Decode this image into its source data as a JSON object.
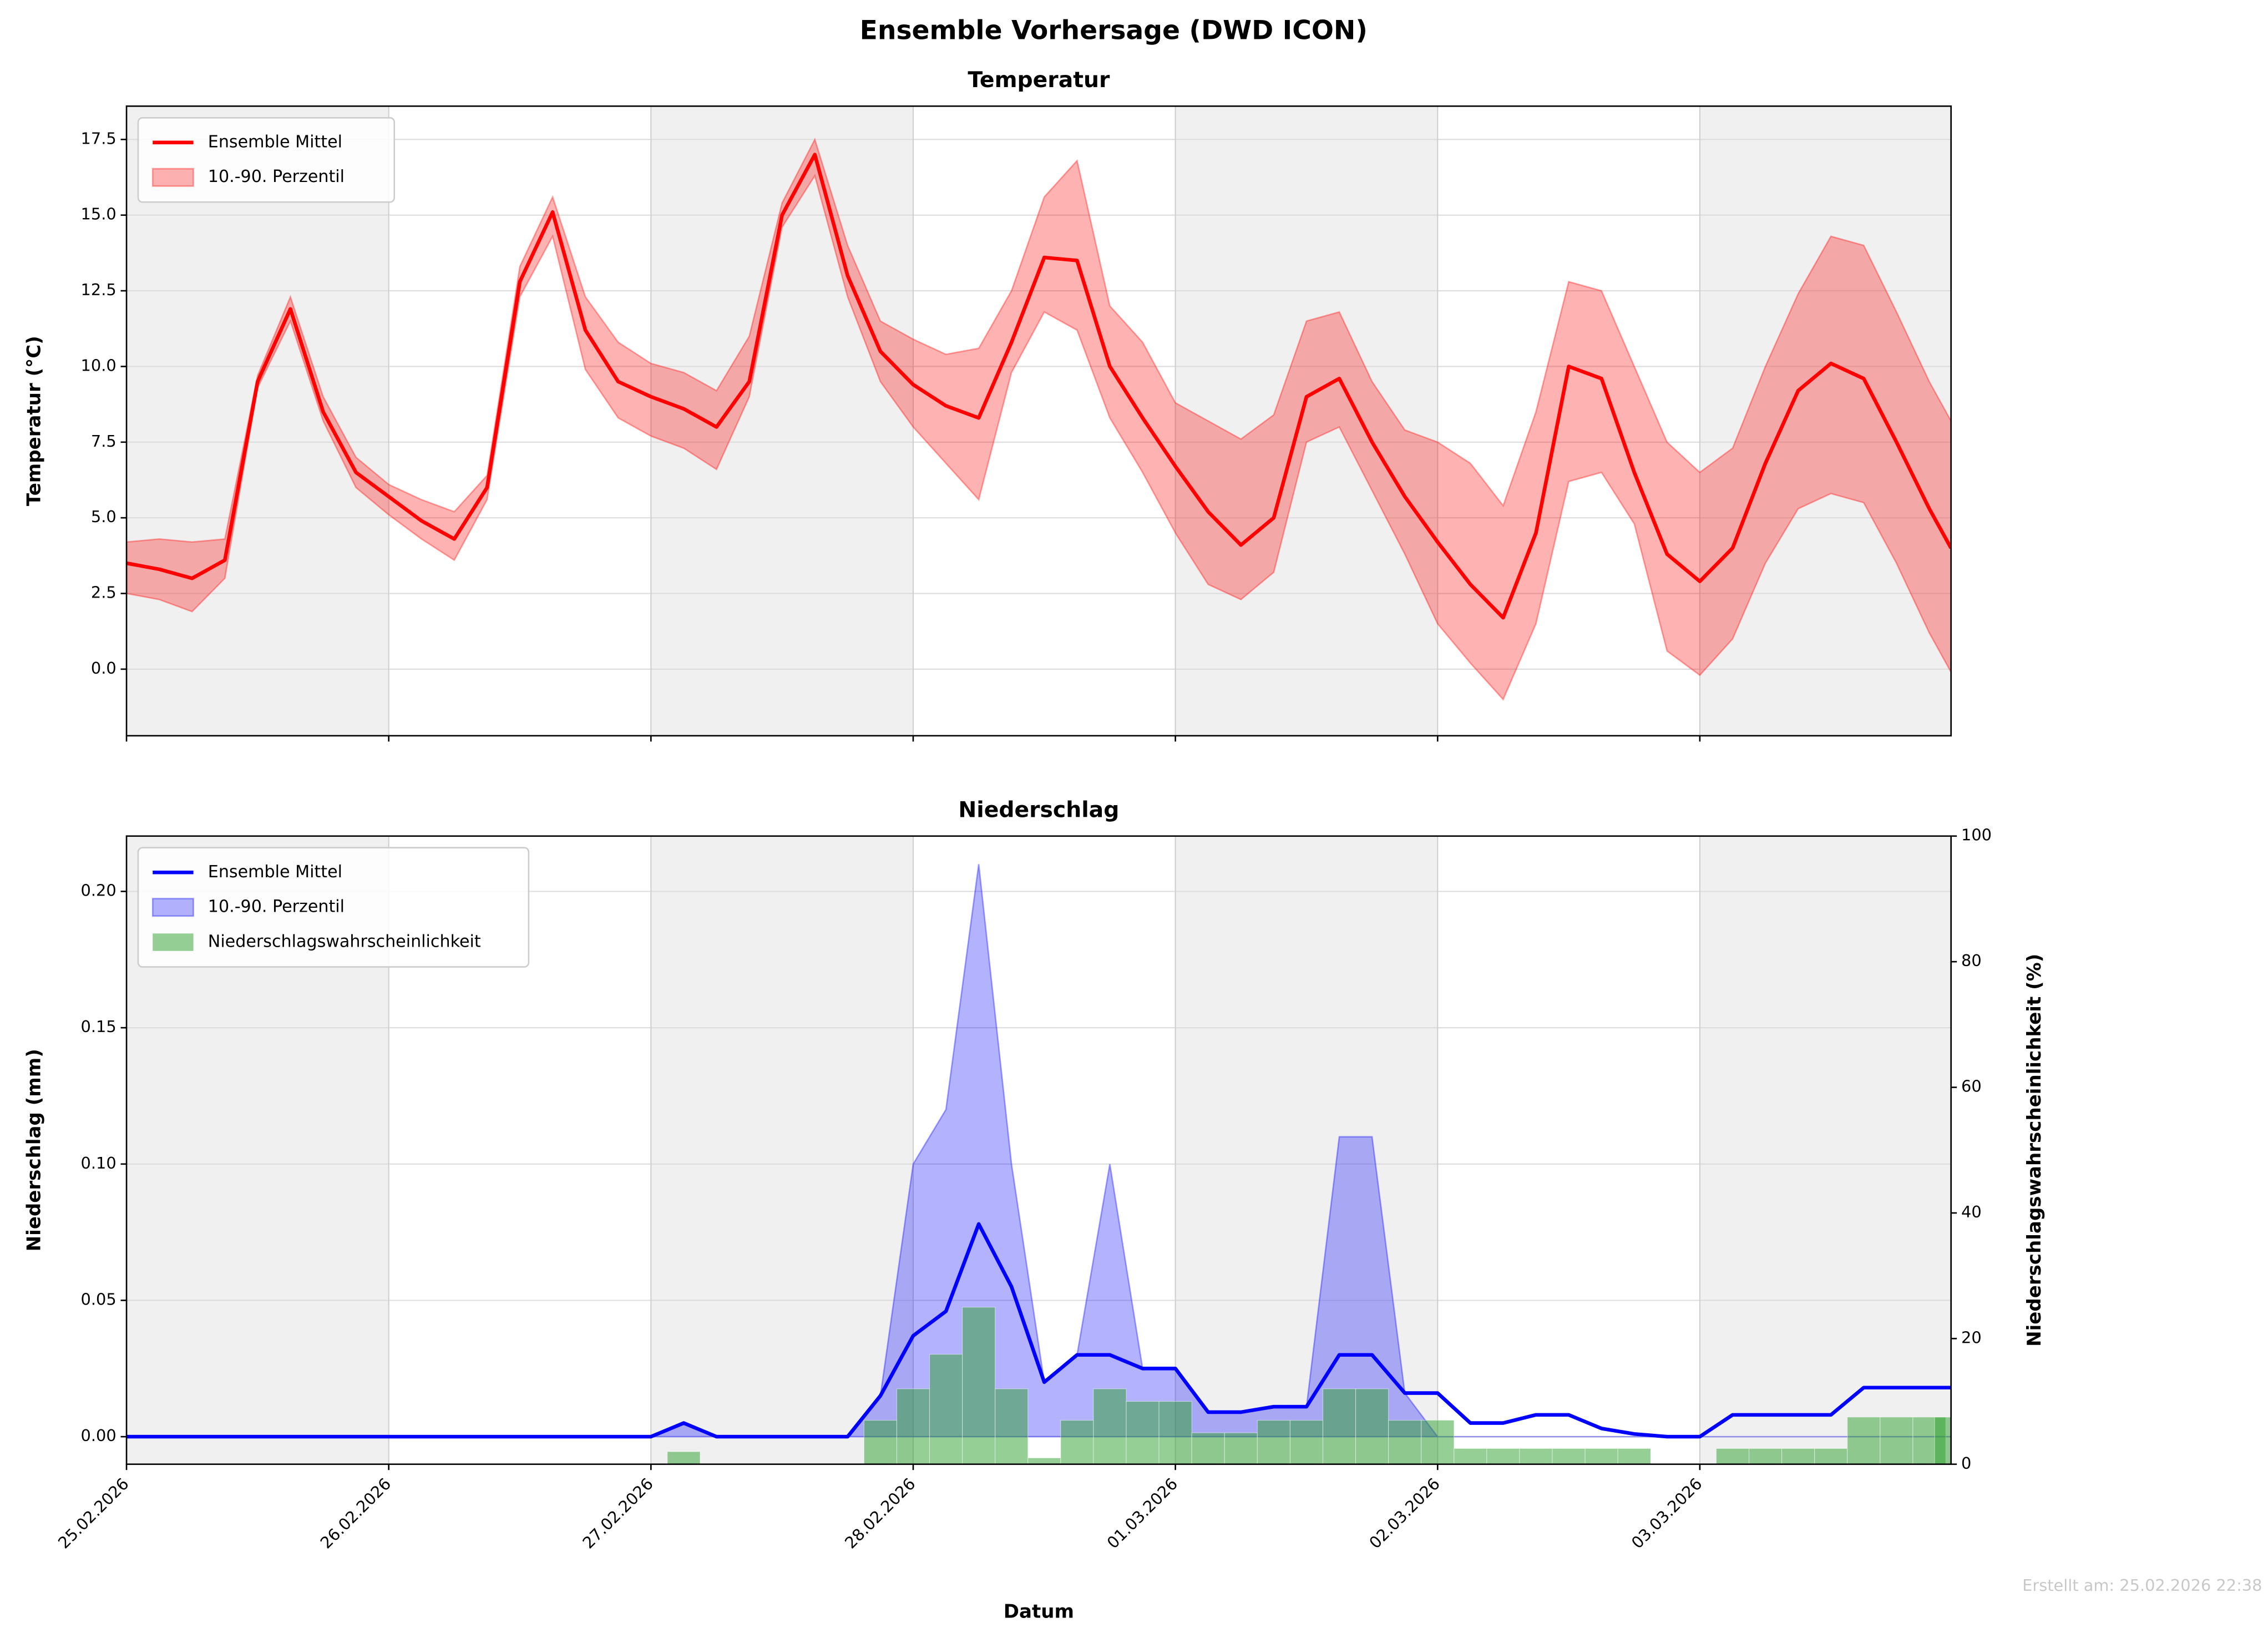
{
  "title": "Ensemble Vorhersage (DWD ICON)",
  "footer": "Erstellt am: 25.02.2026 22:38",
  "chart_data": [
    {
      "type": "line",
      "title": "Temperatur",
      "ylabel": "Temperatur (°C)",
      "x": [
        0,
        0.125,
        0.25,
        0.375,
        0.5,
        0.625,
        0.75,
        0.875,
        1,
        1.125,
        1.25,
        1.375,
        1.5,
        1.625,
        1.75,
        1.875,
        2,
        2.125,
        2.25,
        2.375,
        2.5,
        2.625,
        2.75,
        2.875,
        3,
        3.125,
        3.25,
        3.375,
        3.5,
        3.625,
        3.75,
        3.875,
        4,
        4.125,
        4.25,
        4.375,
        4.5,
        4.625,
        4.75,
        4.875,
        5,
        5.125,
        5.25,
        5.375,
        5.5,
        5.625,
        5.75,
        5.875,
        6,
        6.125,
        6.25,
        6.375,
        6.5,
        6.625,
        6.75,
        6.875,
        6.958
      ],
      "series": [
        {
          "name": "10.-90. Perzentil",
          "type": "band",
          "color": "#ff0000",
          "lower": [
            2.5,
            2.3,
            1.9,
            3.0,
            9.3,
            11.5,
            8.2,
            6.0,
            5.1,
            4.3,
            3.6,
            5.6,
            12.3,
            14.3,
            9.9,
            8.3,
            7.7,
            7.3,
            6.6,
            9.0,
            14.6,
            16.3,
            12.3,
            9.5,
            8.0,
            6.8,
            5.6,
            9.8,
            11.8,
            11.2,
            8.3,
            6.5,
            4.5,
            2.8,
            2.3,
            3.2,
            7.5,
            8.0,
            5.9,
            3.8,
            1.5,
            0.2,
            -1.0,
            1.5,
            6.2,
            6.5,
            4.8,
            0.6,
            -0.2,
            1.0,
            3.5,
            5.3,
            5.8,
            5.5,
            3.5,
            1.2,
            -0.1
          ],
          "upper": [
            4.2,
            4.3,
            4.2,
            4.3,
            9.7,
            12.3,
            9.0,
            7.0,
            6.1,
            5.6,
            5.2,
            6.4,
            13.3,
            15.6,
            12.3,
            10.8,
            10.1,
            9.8,
            9.2,
            11.0,
            15.4,
            17.5,
            14.0,
            11.5,
            10.9,
            10.4,
            10.6,
            12.5,
            15.6,
            16.8,
            12.0,
            10.8,
            8.8,
            8.2,
            7.6,
            8.4,
            11.5,
            11.8,
            9.5,
            7.9,
            7.5,
            6.8,
            5.4,
            8.5,
            12.8,
            12.5,
            10.0,
            7.5,
            6.5,
            7.3,
            10.0,
            12.4,
            14.3,
            14.0,
            11.8,
            9.5,
            8.2
          ]
        },
        {
          "name": "Ensemble Mittel",
          "type": "line",
          "color": "#ff0000",
          "values": [
            3.5,
            3.3,
            3.0,
            3.6,
            9.5,
            11.9,
            8.5,
            6.5,
            5.7,
            4.9,
            4.3,
            6.0,
            12.8,
            15.1,
            11.2,
            9.5,
            9.0,
            8.6,
            8.0,
            9.5,
            15.0,
            17.0,
            13.0,
            10.5,
            9.4,
            8.7,
            8.3,
            10.8,
            13.6,
            13.5,
            10.0,
            8.3,
            6.7,
            5.2,
            4.1,
            5.0,
            9.0,
            9.6,
            7.5,
            5.7,
            4.2,
            2.8,
            1.7,
            4.5,
            10.0,
            9.6,
            6.5,
            3.8,
            2.9,
            4.0,
            6.8,
            9.2,
            10.1,
            9.6,
            7.5,
            5.3,
            4.0
          ]
        }
      ],
      "legend_order": [
        1,
        0
      ],
      "xlim": [
        0,
        6.958
      ],
      "xticks": [
        0,
        1,
        2,
        3,
        4,
        5,
        6
      ],
      "show_xtick_labels": false,
      "ylim": [
        -2.2,
        18.6
      ],
      "yticks": [
        {
          "value": 0,
          "label": "0.0"
        },
        {
          "value": 2.5,
          "label": "2.5"
        },
        {
          "value": 5,
          "label": "5.0"
        },
        {
          "value": 7.5,
          "label": "7.5"
        },
        {
          "value": 10,
          "label": "10.0"
        },
        {
          "value": 12.5,
          "label": "12.5"
        },
        {
          "value": 15,
          "label": "15.0"
        },
        {
          "value": 17.5,
          "label": "17.5"
        }
      ],
      "grid": true,
      "alternate_day_shading": true,
      "legend": "upper left"
    },
    {
      "type": "line",
      "title": "Niederschlag",
      "xlabel": "Datum",
      "ylabel": "Niederschlag (mm)",
      "y2label": "Niederschlagswahrscheinlichkeit (%)",
      "ylabel_color": "#0000ff",
      "y2label_color": "#007000",
      "x": [
        0,
        0.125,
        0.25,
        0.375,
        0.5,
        0.625,
        0.75,
        0.875,
        1,
        1.125,
        1.25,
        1.375,
        1.5,
        1.625,
        1.75,
        1.875,
        2,
        2.125,
        2.25,
        2.375,
        2.5,
        2.625,
        2.75,
        2.875,
        3,
        3.125,
        3.25,
        3.375,
        3.5,
        3.625,
        3.75,
        3.875,
        4,
        4.125,
        4.25,
        4.375,
        4.5,
        4.625,
        4.75,
        4.875,
        5,
        5.125,
        5.25,
        5.375,
        5.5,
        5.625,
        5.75,
        5.875,
        6,
        6.125,
        6.25,
        6.375,
        6.5,
        6.625,
        6.75,
        6.875,
        6.958
      ],
      "series": [
        {
          "name": "Ensemble Mittel",
          "type": "line",
          "color": "#0000ff",
          "values": [
            0,
            0,
            0,
            0,
            0,
            0,
            0,
            0,
            0,
            0,
            0,
            0,
            0,
            0,
            0,
            0,
            0,
            0.005,
            0,
            0,
            0,
            0,
            0,
            0.015,
            0.037,
            0.046,
            0.078,
            0.055,
            0.02,
            0.03,
            0.03,
            0.025,
            0.025,
            0.009,
            0.009,
            0.011,
            0.011,
            0.03,
            0.03,
            0.016,
            0.016,
            0.005,
            0.005,
            0.008,
            0.008,
            0.003,
            0.001,
            0,
            0,
            0.008,
            0.008,
            0.008,
            0.008,
            0.018,
            0.018,
            0.018,
            0.018
          ]
        },
        {
          "name": "10.-90. Perzentil",
          "type": "band",
          "color": "#0000ff",
          "lower": [
            0,
            0,
            0,
            0,
            0,
            0,
            0,
            0,
            0,
            0,
            0,
            0,
            0,
            0,
            0,
            0,
            0,
            0,
            0,
            0,
            0,
            0,
            0,
            0,
            0,
            0,
            0,
            0,
            0,
            0,
            0,
            0,
            0,
            0,
            0,
            0,
            0,
            0,
            0,
            0,
            0,
            0,
            0,
            0,
            0,
            0,
            0,
            0,
            0,
            0,
            0,
            0,
            0,
            0,
            0,
            0,
            0
          ],
          "upper": [
            0,
            0,
            0,
            0,
            0,
            0,
            0,
            0,
            0,
            0,
            0,
            0,
            0,
            0,
            0,
            0,
            0,
            0.005,
            0,
            0,
            0,
            0,
            0,
            0.015,
            0.1,
            0.12,
            0.21,
            0.1,
            0.02,
            0.03,
            0.1,
            0.025,
            0.025,
            0.009,
            0.009,
            0.011,
            0.011,
            0.11,
            0.11,
            0.016,
            0,
            0,
            0,
            0,
            0,
            0,
            0,
            0,
            0,
            0,
            0,
            0,
            0,
            0,
            0,
            0,
            0
          ]
        },
        {
          "name": "Niederschlagswahrscheinlichkeit",
          "type": "bar",
          "axis": "y2",
          "color": "#2ca02c",
          "values": [
            0,
            0,
            0,
            0,
            0,
            0,
            0,
            0,
            0,
            0,
            0,
            0,
            0,
            0,
            0,
            0,
            0,
            2,
            0,
            0,
            0,
            0,
            0,
            7,
            12,
            17.5,
            25,
            12,
            1,
            7,
            12,
            10,
            10,
            5,
            5,
            7,
            7,
            12,
            12,
            7,
            7,
            2.5,
            2.5,
            2.5,
            2.5,
            2.5,
            2.5,
            0,
            0,
            2.5,
            2.5,
            2.5,
            2.5,
            7.5,
            7.5,
            7.5,
            7.5
          ]
        }
      ],
      "legend_order": [
        0,
        1,
        2
      ],
      "xlim": [
        0,
        6.958
      ],
      "xticks": [
        {
          "value": 0,
          "label": "25.02.2026"
        },
        {
          "value": 1,
          "label": "26.02.2026"
        },
        {
          "value": 2,
          "label": "27.02.2026"
        },
        {
          "value": 3,
          "label": "28.02.2026"
        },
        {
          "value": 4,
          "label": "01.03.2026"
        },
        {
          "value": 5,
          "label": "02.03.2026"
        },
        {
          "value": 6,
          "label": "03.03.2026"
        }
      ],
      "show_xtick_labels": true,
      "ylim": [
        -0.0101,
        0.2203
      ],
      "yticks": [
        {
          "value": 0,
          "label": "0.00"
        },
        {
          "value": 0.05,
          "label": "0.05"
        },
        {
          "value": 0.1,
          "label": "0.10"
        },
        {
          "value": 0.15,
          "label": "0.15"
        },
        {
          "value": 0.2,
          "label": "0.20"
        }
      ],
      "y2lim": [
        0,
        100
      ],
      "y2ticks": [
        0,
        20,
        40,
        60,
        80,
        100
      ],
      "grid": true,
      "alternate_day_shading": true,
      "legend": "upper left"
    }
  ]
}
